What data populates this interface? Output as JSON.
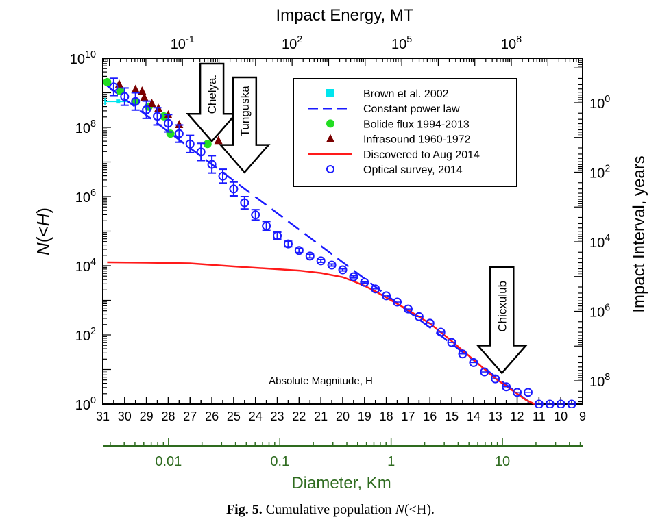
{
  "chart_data": {
    "type": "scatter",
    "title": "",
    "xlabel": "Absolute Magnitude, H",
    "ylabel_parts": [
      "N",
      "(<",
      "H",
      ")"
    ],
    "xlim": [
      31,
      9
    ],
    "ylim_log10": [
      0,
      10
    ],
    "x_ticks": [
      "31",
      "30",
      "29",
      "28",
      "27",
      "26",
      "25",
      "24",
      "23",
      "22",
      "21",
      "20",
      "19",
      "18",
      "17",
      "16",
      "15",
      "14",
      "13",
      "12",
      "11",
      "10",
      "9"
    ],
    "y_ticks": [
      {
        "base": "10",
        "exp": "0"
      },
      {
        "base": "10",
        "exp": "2"
      },
      {
        "base": "10",
        "exp": "4"
      },
      {
        "base": "10",
        "exp": "6"
      },
      {
        "base": "10",
        "exp": "8"
      },
      {
        "base": "10",
        "exp": "10"
      }
    ],
    "top_axis": {
      "label": "Impact Energy, MT",
      "ticks": [
        {
          "base": "10",
          "exp": "-1",
          "log": -1
        },
        {
          "base": "10",
          "exp": "2",
          "log": 2
        },
        {
          "base": "10",
          "exp": "5",
          "log": 5
        },
        {
          "base": "10",
          "exp": "8",
          "log": 8
        }
      ],
      "range_log10": [
        -3.18,
        9.95
      ]
    },
    "right_axis": {
      "label": "Impact Interval, years",
      "ticks": [
        {
          "base": "10",
          "exp": "0",
          "log": 0
        },
        {
          "base": "10",
          "exp": "2",
          "log": 2
        },
        {
          "base": "10",
          "exp": "4",
          "log": 4
        },
        {
          "base": "10",
          "exp": "6",
          "log": 6
        },
        {
          "base": "10",
          "exp": "8",
          "log": 8
        }
      ],
      "range_log10": [
        -1.28,
        8.67
      ]
    },
    "diameter_axis": {
      "label": "Diameter, Km",
      "ticks": [
        {
          "label": "0.01",
          "log": -2
        },
        {
          "label": "0.1",
          "log": -1
        },
        {
          "label": "1",
          "log": 0
        },
        {
          "label": "10",
          "log": 1
        }
      ],
      "range_log10": [
        -2.59,
        1.72
      ],
      "color": "#2e6b1f"
    },
    "legend": {
      "placement": "top-right",
      "entries": [
        {
          "name": "Brown et al. 2002",
          "marker": "square",
          "color": "#00e5ee"
        },
        {
          "name": "Constant power law",
          "marker": "dashed-line",
          "color": "#1a1aff"
        },
        {
          "name": "Bolide flux 1994-2013",
          "marker": "circle-filled",
          "color": "#22dd22"
        },
        {
          "name": "Infrasound 1960-1972",
          "marker": "triangle",
          "color": "#7a0000"
        },
        {
          "name": "Discovered to Aug 2014",
          "marker": "line",
          "color": "#ff1a1a"
        },
        {
          "name": "Optical survey, 2014",
          "marker": "circle-open",
          "color": "#1a1aff"
        }
      ]
    },
    "series": {
      "optical_survey": {
        "H": [
          30.5,
          30,
          29.5,
          29,
          28.5,
          28,
          27.5,
          27,
          26.5,
          26,
          25.5,
          25,
          24.5,
          24,
          23.5,
          23,
          22.5,
          22,
          21.5,
          21,
          20.5,
          20,
          19.5,
          19,
          18.5,
          18,
          17.5,
          17,
          16.5,
          16,
          15.5,
          15,
          14.5,
          14,
          13.5,
          13,
          12.5,
          12,
          11.5,
          11,
          10.5,
          10,
          9.5
        ],
        "log10N": [
          9.17,
          8.89,
          8.75,
          8.51,
          8.32,
          8.12,
          7.82,
          7.52,
          7.29,
          6.93,
          6.59,
          6.22,
          5.82,
          5.47,
          5.15,
          4.87,
          4.63,
          4.44,
          4.28,
          4.14,
          4.02,
          3.88,
          3.68,
          3.52,
          3.33,
          3.13,
          2.95,
          2.75,
          2.53,
          2.34,
          2.08,
          1.78,
          1.45,
          1.2,
          0.93,
          0.73,
          0.5,
          0.34,
          0.34,
          0,
          0,
          0,
          0
        ],
        "err_log10": [
          0.25,
          0.25,
          0.25,
          0.25,
          0.25,
          0.25,
          0.25,
          0.25,
          0.25,
          0.25,
          0.2,
          0.2,
          0.18,
          0.15,
          0.13,
          0.1,
          0.08,
          0.06,
          0.05,
          0.04,
          0.03,
          0.03,
          0.03,
          0.02,
          0,
          0,
          0,
          0,
          0,
          0,
          0,
          0,
          0,
          0,
          0,
          0,
          0,
          0,
          0,
          0,
          0,
          0,
          0
        ]
      },
      "power_law": {
        "H": [
          30.8,
          11.4
        ],
        "log10N": [
          9.2,
          0.04
        ]
      },
      "discovered": {
        "H": [
          30.8,
          29,
          27,
          25,
          23,
          22,
          21,
          20,
          19.5,
          19,
          18.5,
          18,
          17,
          16,
          15,
          14,
          13,
          12,
          11.6,
          11.2
        ],
        "log10N": [
          4.1,
          4.09,
          4.07,
          3.98,
          3.9,
          3.86,
          3.79,
          3.67,
          3.55,
          3.42,
          3.26,
          3.08,
          2.72,
          2.33,
          1.82,
          1.28,
          0.74,
          0.3,
          0.12,
          0
        ]
      },
      "bolide_flux": {
        "H": [
          30.8,
          30.2,
          29.5,
          28.9,
          28.2,
          27.9,
          26.2
        ],
        "log10N": [
          9.31,
          9.05,
          8.75,
          8.6,
          8.32,
          7.82,
          7.52
        ]
      },
      "infrasound": {
        "H": [
          30.25,
          29.5,
          29.2,
          29.1,
          28.75,
          28.45,
          28.0,
          27.5,
          25.7
        ],
        "log10N": [
          9.25,
          9.1,
          9.05,
          8.87,
          8.69,
          8.55,
          8.36,
          8.08,
          7.62
        ]
      },
      "brown_2002": {
        "H": [
          30.3
        ],
        "H_range": [
          30.9,
          29.9
        ],
        "log10N": [
          8.75
        ]
      }
    },
    "annotations": [
      {
        "text": "Chelya.",
        "H": 26.0,
        "log10N": 7.6
      },
      {
        "text": "Tunguska",
        "H": 24.5,
        "log10N": 6.7
      },
      {
        "text": "Chicxulub",
        "H": 12.7,
        "log10N": 0.9
      }
    ],
    "colors": {
      "optical": "#1a1aff",
      "discovered": "#ff1a1a",
      "bolide": "#22dd22",
      "infrasound": "#7a0000",
      "brown": "#00e5ee",
      "diameter": "#2e6b1f"
    }
  },
  "caption": {
    "fig": "Fig. 5.",
    "text": " Cumulative population ",
    "var": "N",
    "end": "(<H)."
  }
}
